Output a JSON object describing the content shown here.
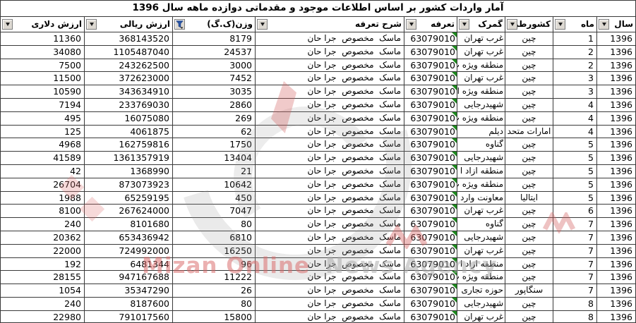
{
  "title": "آمار واردات کشور بر اساس اطلاعات موجود و مقدماتی دوازده ماهه سال 1396",
  "columns": [
    {
      "key": "year",
      "label": "سال",
      "filter": "dropdown"
    },
    {
      "key": "month",
      "label": "ماه",
      "filter": "dropdown"
    },
    {
      "key": "country",
      "label": "کشورطرة",
      "filter": "dropdown"
    },
    {
      "key": "customs",
      "label": "گمرک",
      "filter": "dropdown"
    },
    {
      "key": "tariff",
      "label": "تعرفه",
      "filter": "dropdown"
    },
    {
      "key": "desc",
      "label": "شرح تعرفه",
      "filter": "dropdown"
    },
    {
      "key": "weight",
      "label": "وزن(ک.گ)",
      "filter": "funnel"
    },
    {
      "key": "rial",
      "label": "ارزش ریالی",
      "filter": "dropdown"
    },
    {
      "key": "dollar",
      "label": "ارزش دلاری",
      "filter": "dropdown"
    }
  ],
  "rows": [
    {
      "year": "1396",
      "month": "1",
      "country": "چین",
      "customs": "غرب تهران",
      "tariff": "63079010",
      "desc": "ماسک  مخصوص  جرا حان",
      "weight": "8179",
      "rial": "368143520",
      "dollar": "11360"
    },
    {
      "year": "1396",
      "month": "2",
      "country": "چین",
      "customs": "غرب تهران",
      "tariff": "63079010",
      "desc": "ماسک  مخصوص  جرا حان",
      "weight": "24537",
      "rial": "1105487040",
      "dollar": "34080"
    },
    {
      "year": "1396",
      "month": "2",
      "country": "چین",
      "customs": "منطقه ویژه ب",
      "tariff": "63079010",
      "desc": "ماسک  مخصوص  جرا حان",
      "weight": "3000",
      "rial": "243262500",
      "dollar": "7500"
    },
    {
      "year": "1396",
      "month": "3",
      "country": "چین",
      "customs": "غرب تهران",
      "tariff": "63079010",
      "desc": "ماسک  مخصوص  جرا حان",
      "weight": "7452",
      "rial": "372623000",
      "dollar": "11500"
    },
    {
      "year": "1396",
      "month": "3",
      "country": "چین",
      "customs": "منطقه ویژه ا",
      "tariff": "63079010",
      "desc": "ماسک  مخصوص  جرا حان",
      "weight": "3035",
      "rial": "343634910",
      "dollar": "10590"
    },
    {
      "year": "1396",
      "month": "4",
      "country": "چین",
      "customs": "شهیدرجایی",
      "tariff": "63079010",
      "desc": "ماسک  مخصوص  جرا حان",
      "weight": "2860",
      "rial": "233769030",
      "dollar": "7194"
    },
    {
      "year": "1396",
      "month": "4",
      "country": "چین",
      "customs": "منطقه ویژه ب",
      "tariff": "63079010",
      "desc": "ماسک  مخصوص  جرا حان",
      "weight": "269",
      "rial": "16075080",
      "dollar": "495"
    },
    {
      "year": "1396",
      "month": "4",
      "country": "امارات متحد",
      "customs": "دیلم",
      "tariff": "63079010",
      "desc": "ماسک  مخصوص  جرا حان",
      "weight": "62",
      "rial": "4061875",
      "dollar": "125"
    },
    {
      "year": "1396",
      "month": "5",
      "country": "چین",
      "customs": "گناوه",
      "tariff": "63079010",
      "desc": "ماسک  مخصوص  جرا حان",
      "weight": "1750",
      "rial": "162759816",
      "dollar": "4968"
    },
    {
      "year": "1396",
      "month": "5",
      "country": "چین",
      "customs": "شهیدرجایی",
      "tariff": "63079010",
      "desc": "ماسک  مخصوص  جرا حان",
      "weight": "13404",
      "rial": "1361357919",
      "dollar": "41589"
    },
    {
      "year": "1396",
      "month": "5",
      "country": "چین",
      "customs": "منطقه ازاد ا",
      "tariff": "63079010",
      "desc": "ماسک  مخصوص  جرا حان",
      "weight": "21",
      "rial": "1368990",
      "dollar": "42"
    },
    {
      "year": "1396",
      "month": "5",
      "country": "چین",
      "customs": "منطقه ویژه ب",
      "tariff": "63079010",
      "desc": "ماسک  مخصوص  جرا حان",
      "weight": "10642",
      "rial": "873073923",
      "dollar": "26704"
    },
    {
      "year": "1396",
      "month": "5",
      "country": "ایتالیا",
      "customs": "معاونت وارد",
      "tariff": "63079010",
      "desc": "ماسک  مخصوص  جرا حان",
      "weight": "450",
      "rial": "65259195",
      "dollar": "1988"
    },
    {
      "year": "1396",
      "month": "6",
      "country": "چین",
      "customs": "غرب تهران",
      "tariff": "63079010",
      "desc": "ماسک  مخصوص  جرا حان",
      "weight": "7047",
      "rial": "267624000",
      "dollar": "8100"
    },
    {
      "year": "1396",
      "month": "7",
      "country": "چین",
      "customs": "گناوه",
      "tariff": "63079010",
      "desc": "ماسک  مخصوص  جرا حان",
      "weight": "80",
      "rial": "8101680",
      "dollar": "240"
    },
    {
      "year": "1396",
      "month": "7",
      "country": "چین",
      "customs": "شهیدرجایی",
      "tariff": "63079010",
      "desc": "ماسک  مخصوص  جرا حان",
      "weight": "6810",
      "rial": "653436942",
      "dollar": "20362"
    },
    {
      "year": "1396",
      "month": "7",
      "country": "چین",
      "customs": "غرب تهران",
      "tariff": "63079010",
      "desc": "ماسک  مخصوص  جرا حان",
      "weight": "16250",
      "rial": "724992000",
      "dollar": "22000"
    },
    {
      "year": "1396",
      "month": "7",
      "country": "چین",
      "customs": "منطقه ازاد ا",
      "tariff": "63079010",
      "desc": "ماسک  مخصوص  جرا حان",
      "weight": "96",
      "rial": "6481344",
      "dollar": "192"
    },
    {
      "year": "1396",
      "month": "7",
      "country": "چین",
      "customs": "منطقه ویژه ب",
      "tariff": "63079010",
      "desc": "ماسک  مخصوص  جرا حان",
      "weight": "11222",
      "rial": "947167688",
      "dollar": "28155"
    },
    {
      "year": "1396",
      "month": "7",
      "country": "سنگاپور",
      "customs": "حوزه تجاری",
      "tariff": "63079010",
      "desc": "ماسک  مخصوص  جرا حان",
      "weight": "26",
      "rial": "35347290",
      "dollar": "1054"
    },
    {
      "year": "1396",
      "month": "8",
      "country": "چین",
      "customs": "شهیدرجایی",
      "tariff": "63079010",
      "desc": "ماسک  مخصوص  جرا حان",
      "weight": "80",
      "rial": "8187600",
      "dollar": "240"
    },
    {
      "year": "1396",
      "month": "8",
      "country": "چین",
      "customs": "غرب تهران",
      "tariff": "63079010",
      "desc": "ماسک  مخصوص  جرا حان",
      "weight": "15800",
      "rial": "791017560",
      "dollar": "22980"
    }
  ],
  "watermark": {
    "text_red": "Mizan Online",
    "text_gray": "News Agency"
  }
}
